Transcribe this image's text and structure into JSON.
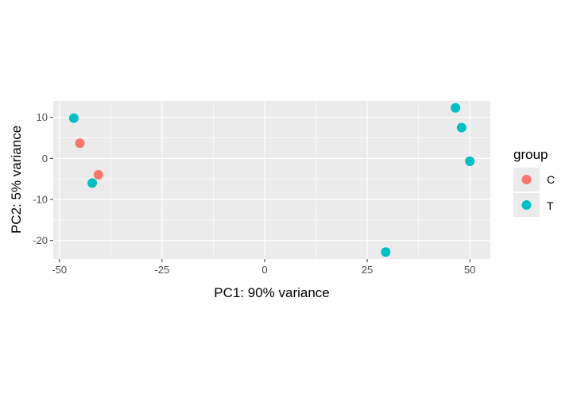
{
  "chart_data": {
    "type": "scatter",
    "xlabel": "PC1: 90% variance",
    "ylabel": "PC2: 5% variance",
    "xlim": [
      -51.5,
      55
    ],
    "ylim": [
      -24.5,
      14
    ],
    "x_ticks": [
      -50,
      -25,
      0,
      25,
      50
    ],
    "x_tick_labels": [
      "-50",
      "-25",
      "0",
      "25",
      "50"
    ],
    "y_ticks": [
      10,
      0,
      -10,
      -20
    ],
    "y_tick_labels": [
      "10",
      "0",
      "-10",
      "-20"
    ],
    "grid": true,
    "legend": {
      "title": "group",
      "position": "right"
    },
    "series": [
      {
        "name": "C",
        "color": "#f8766d",
        "points": [
          {
            "x": -45,
            "y": 3.7
          },
          {
            "x": -40.5,
            "y": -4
          }
        ]
      },
      {
        "name": "T",
        "color": "#00bfc4",
        "points": [
          {
            "x": -46.5,
            "y": 9.8
          },
          {
            "x": -42,
            "y": -6
          },
          {
            "x": 29.5,
            "y": -22.8
          },
          {
            "x": 46.5,
            "y": 12.3
          },
          {
            "x": 48,
            "y": 7.5
          },
          {
            "x": 50,
            "y": -0.7
          }
        ]
      }
    ]
  }
}
